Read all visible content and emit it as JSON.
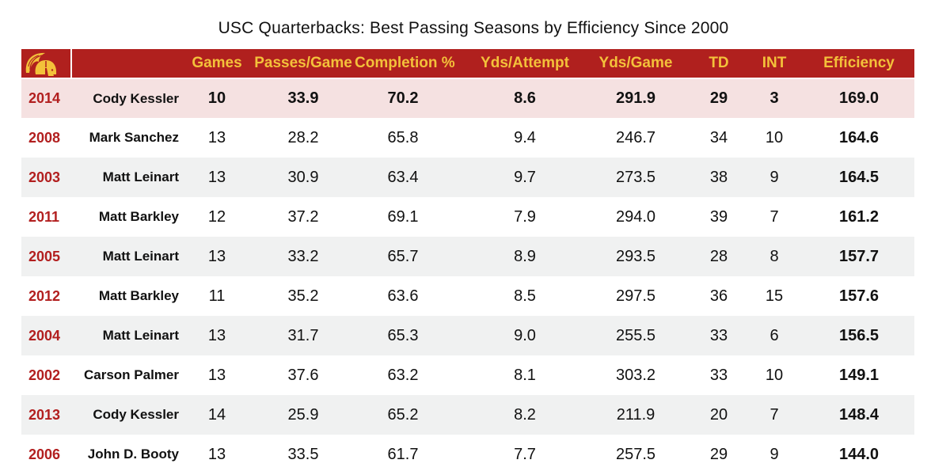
{
  "chart_data": {
    "type": "table",
    "title": "USC Quarterbacks: Best Passing Seasons by Efficiency Since 2000",
    "logo": "usc-trojan-head-icon",
    "colors": {
      "header_bg": "#b0201e",
      "header_text": "#f3c13a",
      "year_text": "#b21f1f",
      "highlight_row": "#f5e1e1",
      "alt_row": "#f0f1f1"
    },
    "columns": [
      "Games",
      "Passes/Game",
      "Completion %",
      "Yds/Attempt",
      "Yds/Game",
      "TD",
      "INT",
      "Efficiency"
    ],
    "rows": [
      {
        "year": "2014",
        "player": "Cody Kessler",
        "games": "10",
        "passes_per_game": "33.9",
        "completion_pct": "70.2",
        "yds_per_attempt": "8.6",
        "yds_per_game": "291.9",
        "td": "29",
        "int": "3",
        "efficiency": "169.0",
        "highlighted": true
      },
      {
        "year": "2008",
        "player": "Mark Sanchez",
        "games": "13",
        "passes_per_game": "28.2",
        "completion_pct": "65.8",
        "yds_per_attempt": "9.4",
        "yds_per_game": "246.7",
        "td": "34",
        "int": "10",
        "efficiency": "164.6"
      },
      {
        "year": "2003",
        "player": "Matt Leinart",
        "games": "13",
        "passes_per_game": "30.9",
        "completion_pct": "63.4",
        "yds_per_attempt": "9.7",
        "yds_per_game": "273.5",
        "td": "38",
        "int": "9",
        "efficiency": "164.5"
      },
      {
        "year": "2011",
        "player": "Matt Barkley",
        "games": "12",
        "passes_per_game": "37.2",
        "completion_pct": "69.1",
        "yds_per_attempt": "7.9",
        "yds_per_game": "294.0",
        "td": "39",
        "int": "7",
        "efficiency": "161.2"
      },
      {
        "year": "2005",
        "player": "Matt Leinart",
        "games": "13",
        "passes_per_game": "33.2",
        "completion_pct": "65.7",
        "yds_per_attempt": "8.9",
        "yds_per_game": "293.5",
        "td": "28",
        "int": "8",
        "efficiency": "157.7"
      },
      {
        "year": "2012",
        "player": "Matt Barkley",
        "games": "11",
        "passes_per_game": "35.2",
        "completion_pct": "63.6",
        "yds_per_attempt": "8.5",
        "yds_per_game": "297.5",
        "td": "36",
        "int": "15",
        "efficiency": "157.6"
      },
      {
        "year": "2004",
        "player": "Matt Leinart",
        "games": "13",
        "passes_per_game": "31.7",
        "completion_pct": "65.3",
        "yds_per_attempt": "9.0",
        "yds_per_game": "255.5",
        "td": "33",
        "int": "6",
        "efficiency": "156.5"
      },
      {
        "year": "2002",
        "player": "Carson Palmer",
        "games": "13",
        "passes_per_game": "37.6",
        "completion_pct": "63.2",
        "yds_per_attempt": "8.1",
        "yds_per_game": "303.2",
        "td": "33",
        "int": "10",
        "efficiency": "149.1"
      },
      {
        "year": "2013",
        "player": "Cody Kessler",
        "games": "14",
        "passes_per_game": "25.9",
        "completion_pct": "65.2",
        "yds_per_attempt": "8.2",
        "yds_per_game": "211.9",
        "td": "20",
        "int": "7",
        "efficiency": "148.4"
      },
      {
        "year": "2006",
        "player": "John D. Booty",
        "games": "13",
        "passes_per_game": "33.5",
        "completion_pct": "61.7",
        "yds_per_attempt": "7.7",
        "yds_per_game": "257.5",
        "td": "29",
        "int": "9",
        "efficiency": "144.0"
      }
    ]
  }
}
